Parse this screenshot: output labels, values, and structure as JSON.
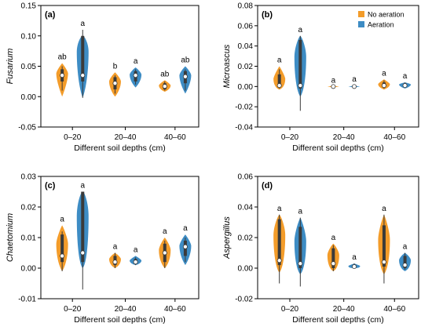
{
  "legend": {
    "items": [
      {
        "label": "No aeration",
        "color": "#F39C2A"
      },
      {
        "label": "Aeration",
        "color": "#3D8CC4"
      }
    ]
  },
  "colors": {
    "no_aeration": "#F39C2A",
    "aeration": "#3D8CC4",
    "box": "#3A3A3A",
    "median": "#FFFFFF"
  },
  "chart_data": [
    {
      "type": "violin",
      "panel": "(a)",
      "title": "",
      "xlabel": "Different soil depths (cm)",
      "ylabel": "Fusarium",
      "ylim": [
        -0.05,
        0.15
      ],
      "yticks": [
        "-0.05",
        "0.00",
        "0.05",
        "0.10",
        "0.15"
      ],
      "categories": [
        "0–20",
        "20–40",
        "40–60"
      ],
      "series": [
        {
          "name": "No aeration",
          "data": [
            {
              "median": 0.035,
              "q1": 0.025,
              "q3": 0.045,
              "wlo": 0.01,
              "whi": 0.05,
              "min": 0.0,
              "max": 0.055,
              "label": "ab"
            },
            {
              "median": 0.022,
              "q1": 0.012,
              "q3": 0.032,
              "wlo": 0.005,
              "whi": 0.035,
              "min": 0.0,
              "max": 0.04,
              "label": "b"
            },
            {
              "median": 0.017,
              "q1": 0.012,
              "q3": 0.022,
              "wlo": 0.01,
              "whi": 0.025,
              "min": 0.008,
              "max": 0.027,
              "label": "ab"
            }
          ]
        },
        {
          "name": "Aeration",
          "data": [
            {
              "median": 0.035,
              "q1": 0.025,
              "q3": 0.1,
              "wlo": -0.002,
              "whi": 0.11,
              "min": -0.002,
              "max": 0.1,
              "label": "a"
            },
            {
              "median": 0.035,
              "q1": 0.025,
              "q3": 0.042,
              "wlo": 0.02,
              "whi": 0.045,
              "min": 0.015,
              "max": 0.048,
              "label": "a"
            },
            {
              "median": 0.033,
              "q1": 0.022,
              "q3": 0.042,
              "wlo": 0.01,
              "whi": 0.045,
              "min": 0.005,
              "max": 0.05,
              "label": "ab"
            }
          ]
        }
      ]
    },
    {
      "type": "violin",
      "panel": "(b)",
      "title": "",
      "xlabel": "Different soil depths (cm)",
      "ylabel": "Microascus",
      "ylim": [
        -0.04,
        0.08
      ],
      "yticks": [
        "-0.04",
        "-0.02",
        "0.00",
        "0.02",
        "0.04",
        "0.06",
        "0.08"
      ],
      "categories": [
        "0–20",
        "20–40",
        "40–60"
      ],
      "series": [
        {
          "name": "No aeration",
          "data": [
            {
              "median": 0.001,
              "q1": -0.001,
              "q3": 0.012,
              "wlo": -0.002,
              "whi": 0.017,
              "min": -0.003,
              "max": 0.02,
              "label": "a"
            },
            {
              "median": 0.0,
              "q1": 0.0,
              "q3": 0.0,
              "wlo": 0.0,
              "whi": 0.0,
              "min": 0.0,
              "max": 0.0,
              "label": "a"
            },
            {
              "median": 0.001,
              "q1": -0.001,
              "q3": 0.004,
              "wlo": -0.002,
              "whi": 0.006,
              "min": -0.003,
              "max": 0.007,
              "label": "a"
            }
          ]
        },
        {
          "name": "Aeration",
          "data": [
            {
              "median": 0.001,
              "q1": -0.002,
              "q3": 0.046,
              "wlo": -0.024,
              "whi": 0.05,
              "min": -0.01,
              "max": 0.05,
              "label": "a"
            },
            {
              "median": 0.0,
              "q1": 0.0,
              "q3": 0.0,
              "wlo": 0.0,
              "whi": 0.0,
              "min": -0.001,
              "max": 0.001,
              "label": "a"
            },
            {
              "median": 0.001,
              "q1": 0.0,
              "q3": 0.003,
              "wlo": -0.001,
              "whi": 0.004,
              "min": -0.002,
              "max": 0.004,
              "label": "a"
            }
          ]
        }
      ]
    },
    {
      "type": "violin",
      "panel": "(c)",
      "title": "",
      "xlabel": "Different soil depths (cm)",
      "ylabel": "Chaetomium",
      "ylim": [
        -0.01,
        0.03
      ],
      "yticks": [
        "-0.01",
        "0.00",
        "0.01",
        "0.02",
        "0.03"
      ],
      "categories": [
        "0–20",
        "20–40",
        "40–60"
      ],
      "series": [
        {
          "name": "No aeration",
          "data": [
            {
              "median": 0.004,
              "q1": 0.002,
              "q3": 0.011,
              "wlo": -0.001,
              "whi": 0.012,
              "min": -0.001,
              "max": 0.014,
              "label": "a"
            },
            {
              "median": 0.002,
              "q1": 0.001,
              "q3": 0.004,
              "wlo": 0.0,
              "whi": 0.005,
              "min": 0.0,
              "max": 0.005,
              "label": "a"
            },
            {
              "median": 0.005,
              "q1": 0.002,
              "q3": 0.008,
              "wlo": 0.0,
              "whi": 0.009,
              "min": 0.0,
              "max": 0.01,
              "label": "a"
            }
          ]
        },
        {
          "name": "Aeration",
          "data": [
            {
              "median": 0.005,
              "q1": 0.002,
              "q3": 0.025,
              "wlo": -0.007,
              "whi": 0.025,
              "min": 0.0,
              "max": 0.025,
              "label": "a"
            },
            {
              "median": 0.002,
              "q1": 0.0015,
              "q3": 0.003,
              "wlo": 0.001,
              "whi": 0.0035,
              "min": 0.001,
              "max": 0.004,
              "label": "a"
            },
            {
              "median": 0.007,
              "q1": 0.004,
              "q3": 0.009,
              "wlo": 0.002,
              "whi": 0.01,
              "min": 0.001,
              "max": 0.011,
              "label": "a"
            }
          ]
        }
      ]
    },
    {
      "type": "violin",
      "panel": "(d)",
      "title": "",
      "xlabel": "Different soil depths (cm)",
      "ylabel": "Aspergillus",
      "ylim": [
        -0.02,
        0.06
      ],
      "yticks": [
        "-0.02",
        "0.00",
        "0.02",
        "0.04",
        "0.06"
      ],
      "categories": [
        "0–20",
        "20–40",
        "40–60"
      ],
      "series": [
        {
          "name": "No aeration",
          "data": [
            {
              "median": 0.005,
              "q1": 0.002,
              "q3": 0.032,
              "wlo": -0.01,
              "whi": 0.035,
              "min": -0.003,
              "max": 0.035,
              "label": "a"
            },
            {
              "median": 0.003,
              "q1": 0.0,
              "q3": 0.013,
              "wlo": -0.002,
              "whi": 0.015,
              "min": -0.002,
              "max": 0.016,
              "label": "a"
            },
            {
              "median": 0.004,
              "q1": 0.001,
              "q3": 0.028,
              "wlo": -0.01,
              "whi": 0.035,
              "min": -0.004,
              "max": 0.035,
              "label": "a"
            }
          ]
        },
        {
          "name": "Aeration",
          "data": [
            {
              "median": 0.003,
              "q1": 0.0,
              "q3": 0.027,
              "wlo": -0.012,
              "whi": 0.033,
              "min": -0.004,
              "max": 0.033,
              "label": "a"
            },
            {
              "median": 0.001,
              "q1": 0.0,
              "q3": 0.002,
              "wlo": 0.0,
              "whi": 0.003,
              "min": 0.0,
              "max": 0.003,
              "label": "a"
            },
            {
              "median": 0.002,
              "q1": 0.0,
              "q3": 0.008,
              "wlo": -0.001,
              "whi": 0.01,
              "min": -0.002,
              "max": 0.01,
              "label": "a"
            }
          ]
        }
      ]
    }
  ]
}
